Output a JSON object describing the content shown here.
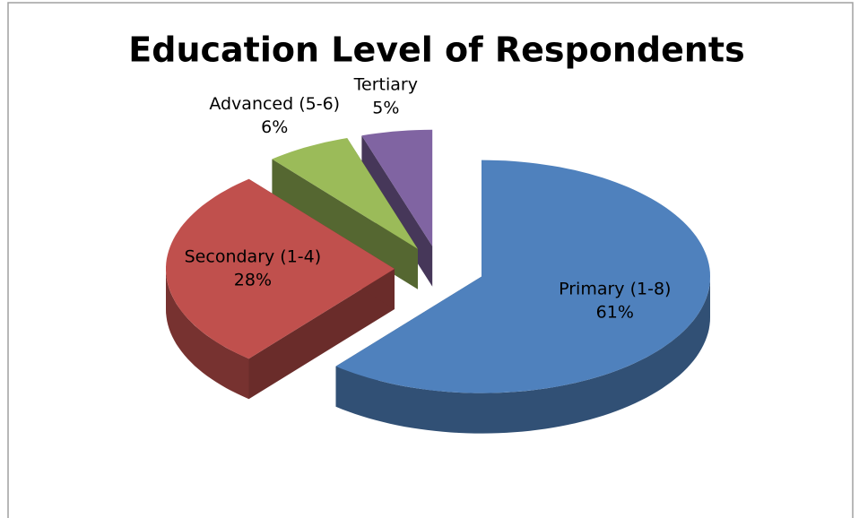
{
  "chart_data": {
    "type": "pie",
    "title": "Education Level of Respondents",
    "categories": [
      "Primary (1-8)",
      "Secondary (1-4)",
      "Advanced (5-6)",
      "Tertiary"
    ],
    "values": [
      61,
      28,
      6,
      5
    ],
    "value_labels": [
      "61%",
      "28%",
      "6%",
      "5%"
    ],
    "colors": [
      "#4f81bd",
      "#c0504d",
      "#9bbb59",
      "#8064a2"
    ]
  }
}
